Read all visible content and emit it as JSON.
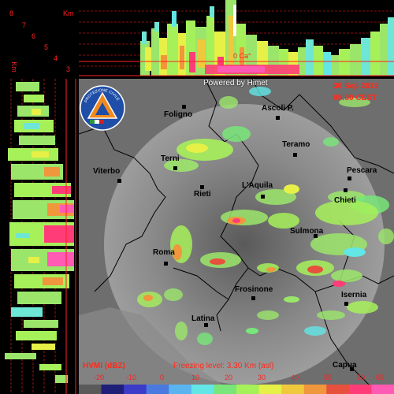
{
  "header": {
    "powered_by": "Powered by Himet",
    "date": "30 Sep 2013",
    "time": "05:50 CEST"
  },
  "profile": {
    "km_unit": "Km",
    "km_levels": [
      "8",
      "7",
      "6",
      "5",
      "4",
      "3",
      "2",
      "1"
    ],
    "freezing_marker": "0 Ca°"
  },
  "map": {
    "cities": [
      {
        "name": "Foligno"
      },
      {
        "name": "Ascoli P."
      },
      {
        "name": "Teramo"
      },
      {
        "name": "Terni"
      },
      {
        "name": "Pescara"
      },
      {
        "name": "Viterbo"
      },
      {
        "name": "Chieti"
      },
      {
        "name": "L'Aquila"
      },
      {
        "name": "Rieti"
      },
      {
        "name": "Sulmona"
      },
      {
        "name": "Roma"
      },
      {
        "name": "Frosinone"
      },
      {
        "name": "Isernia"
      },
      {
        "name": "Latina"
      },
      {
        "name": "Capua"
      }
    ]
  },
  "legend": {
    "product_label": "HVMI (dBZ)",
    "freezing_level": "Freezing level: 3.30 Km (asl)",
    "ticks": [
      "-20",
      "-10",
      "0",
      "10",
      "20",
      "30",
      "40",
      "50",
      "60",
      "65"
    ],
    "colors": [
      "#5a5a5a",
      "#1f1f78",
      "#3c3cc8",
      "#4a7ae0",
      "#5ab4f0",
      "#62e6e6",
      "#78e678",
      "#a6f05a",
      "#e6f046",
      "#f0c83c",
      "#f0963c",
      "#e6503c",
      "#ff3c78",
      "#ff5ab4"
    ]
  },
  "logo": {
    "text": "PROTEZIONE CIVILE"
  }
}
